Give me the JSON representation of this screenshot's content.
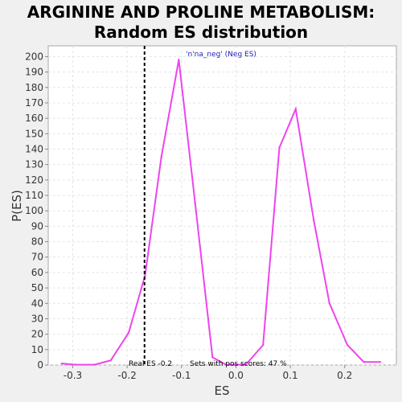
{
  "chart_data": {
    "type": "line",
    "title_lines": [
      "ARGININE AND PROLINE METABOLISM:",
      "Random ES distribution"
    ],
    "xlabel": "ES",
    "ylabel": "P(ES)",
    "xlim": [
      -0.345,
      0.295
    ],
    "ylim": [
      0,
      207
    ],
    "xticks": [
      {
        "value": -0.3,
        "label": "-0.3"
      },
      {
        "value": -0.2,
        "label": "-0.2"
      },
      {
        "value": -0.1,
        "label": "-0.1"
      },
      {
        "value": 0.0,
        "label": "0.0"
      },
      {
        "value": 0.1,
        "label": "0.1"
      },
      {
        "value": 0.2,
        "label": "0.2"
      }
    ],
    "yticks": [
      0,
      10,
      20,
      30,
      40,
      50,
      60,
      70,
      80,
      90,
      100,
      110,
      120,
      130,
      140,
      150,
      160,
      170,
      180,
      190,
      200
    ],
    "grid": true,
    "series": [
      {
        "name": "'n'na_neg' (Neg ES)",
        "color": "#ee44ee",
        "x": [
          -0.32,
          -0.295,
          -0.26,
          -0.23,
          -0.197,
          -0.167,
          -0.137,
          -0.105,
          -0.075,
          -0.043,
          -0.018,
          0.018,
          0.05,
          0.08,
          0.11,
          0.143,
          0.172,
          0.205,
          0.235,
          0.265
        ],
        "y": [
          1,
          0.2,
          0.2,
          3,
          21,
          58,
          135,
          198,
          105,
          5,
          0.2,
          0.2,
          13,
          141,
          166,
          94,
          40,
          13,
          2,
          2
        ]
      }
    ],
    "real_es": {
      "value": -0.168,
      "color": "#000000"
    },
    "annotations": {
      "real_es_text": "Real ES -0.2",
      "sets_text": "Sets with pos scores: 47 %"
    }
  }
}
